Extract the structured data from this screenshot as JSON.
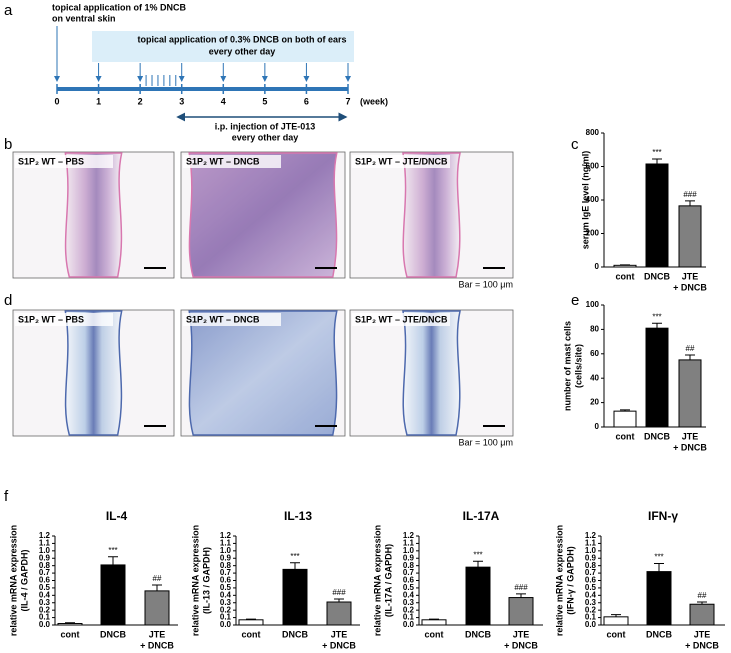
{
  "figure": {
    "panel_letters": [
      "a",
      "b",
      "c",
      "d",
      "e",
      "f"
    ]
  },
  "timeline": {
    "start_note": [
      "topical application of 1% DNCB",
      "on ventral skin"
    ],
    "ear_note": [
      "topical application of 0.3% DNCB on both of ears",
      "every other day"
    ],
    "injection_note": [
      "i.p. injection of JTE-013",
      "every other day"
    ],
    "xticks": [
      0,
      1,
      2,
      3,
      4,
      5,
      6,
      7
    ],
    "xlim": [
      0,
      7
    ],
    "xunit": "(week)"
  },
  "histology": [
    {
      "labels": [
        "S1P₂ WT – PBS",
        "S1P₂ WT – DNCB",
        "S1P₂ WT – JTE/DNCB"
      ],
      "scale_note": "Bar = 100 μm"
    },
    {
      "labels": [
        "S1P₂ WT – PBS",
        "S1P₂ WT – DNCB",
        "S1P₂ WT – JTE/DNCB"
      ],
      "scale_note": "Bar = 100 μm"
    }
  ],
  "chart_data": [
    {
      "type": "bar",
      "ylabel": [
        "serum IgE level (ng/ml)"
      ],
      "categories": [
        "cont",
        "DNCB",
        [
          "JTE",
          "+ DNCB"
        ]
      ],
      "colors": [
        "#ffffff",
        "#000000",
        "#808080"
      ],
      "values": [
        10,
        615,
        365
      ],
      "errors": [
        3,
        30,
        30
      ],
      "annotations": [
        null,
        "***",
        "###"
      ],
      "ylim": [
        0,
        800
      ],
      "yticks": [
        0,
        200,
        400,
        600,
        800
      ]
    },
    {
      "type": "bar",
      "ylabel": [
        "number of mast cells",
        "(cells/site)"
      ],
      "categories": [
        "cont",
        "DNCB",
        [
          "JTE",
          "+ DNCB"
        ]
      ],
      "colors": [
        "#ffffff",
        "#000000",
        "#808080"
      ],
      "values": [
        13,
        81,
        55
      ],
      "errors": [
        1,
        4,
        4
      ],
      "annotations": [
        null,
        "***",
        "##"
      ],
      "ylim": [
        0,
        100
      ],
      "yticks": [
        0,
        20,
        40,
        60,
        80,
        100
      ]
    },
    {
      "type": "bar",
      "title": "IL-4",
      "ylabel": [
        "relative mRNA expression",
        "(IL-4 / GAPDH)"
      ],
      "categories": [
        "cont",
        "DNCB",
        [
          "JTE",
          "+ DNCB"
        ]
      ],
      "colors": [
        "#ffffff",
        "#000000",
        "#808080"
      ],
      "values": [
        0.02,
        0.81,
        0.46
      ],
      "errors": [
        0.01,
        0.11,
        0.08
      ],
      "annotations": [
        null,
        "***",
        "##"
      ],
      "ylim": [
        0,
        1.2
      ],
      "yticks": [
        {
          "value": 0,
          "label": "0.0"
        },
        0.1,
        0.2,
        0.3,
        0.4,
        0.5,
        0.6,
        0.7,
        0.8,
        0.9,
        {
          "value": 1,
          "label": "1.0"
        },
        1.1,
        1.2
      ]
    },
    {
      "type": "bar",
      "title": "IL-13",
      "ylabel": [
        "relative mRNA expression",
        "(IL-13 / GAPDH)"
      ],
      "categories": [
        "cont",
        "DNCB",
        [
          "JTE",
          "+ DNCB"
        ]
      ],
      "colors": [
        "#ffffff",
        "#000000",
        "#808080"
      ],
      "values": [
        0.07,
        0.75,
        0.31
      ],
      "errors": [
        0.01,
        0.09,
        0.04
      ],
      "annotations": [
        null,
        "***",
        "###"
      ],
      "ylim": [
        0,
        1.2
      ],
      "yticks": [
        {
          "value": 0,
          "label": "0.0"
        },
        0.1,
        0.2,
        0.3,
        0.4,
        0.5,
        0.6,
        0.7,
        0.8,
        0.9,
        {
          "value": 1,
          "label": "1.0"
        },
        1.1,
        1.2
      ]
    },
    {
      "type": "bar",
      "title": "IL-17A",
      "ylabel": [
        "relative mRNA expression",
        "(IL-17A / GAPDH)"
      ],
      "categories": [
        "cont",
        "DNCB",
        [
          "JTE",
          "+ DNCB"
        ]
      ],
      "colors": [
        "#ffffff",
        "#000000",
        "#808080"
      ],
      "values": [
        0.07,
        0.78,
        0.37
      ],
      "errors": [
        0.01,
        0.08,
        0.05
      ],
      "annotations": [
        null,
        "***",
        "###"
      ],
      "ylim": [
        0,
        1.2
      ],
      "yticks": [
        {
          "value": 0,
          "label": "0.0"
        },
        0.1,
        0.2,
        0.3,
        0.4,
        0.5,
        0.6,
        0.7,
        0.8,
        0.9,
        {
          "value": 1,
          "label": "1.0"
        },
        1.1,
        1.2
      ]
    },
    {
      "type": "bar",
      "title": "IFN-γ",
      "ylabel": [
        "relative mRNA expression",
        "(IFN-γ / GAPDH)"
      ],
      "categories": [
        "cont",
        "DNCB",
        [
          "JTE",
          "+ DNCB"
        ]
      ],
      "colors": [
        "#ffffff",
        "#000000",
        "#808080"
      ],
      "values": [
        0.11,
        0.72,
        0.28
      ],
      "errors": [
        0.03,
        0.11,
        0.03
      ],
      "annotations": [
        null,
        "***",
        "##"
      ],
      "ylim": [
        0,
        1.2
      ],
      "yticks": [
        {
          "value": 0,
          "label": "0.0"
        },
        0.1,
        0.2,
        0.3,
        0.4,
        0.5,
        0.6,
        0.7,
        0.8,
        0.9,
        {
          "value": 1,
          "label": "1.0"
        },
        1.1,
        1.2
      ]
    }
  ]
}
